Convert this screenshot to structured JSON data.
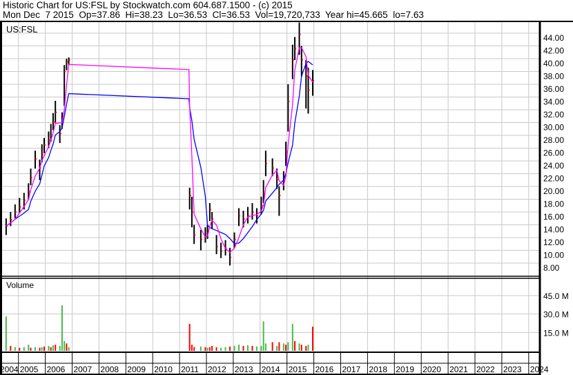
{
  "header": {
    "title": "Historic Chart for US:FSL by Stockwatch.com 604.687.1500 - (c) 2015",
    "quote_line": "Mon Dec  7 2015  Op=37.86  Hi=38.23  Lo=36.53  Cl=36.53  Vol=19,720,733  Year hi=45.665  lo=7.63"
  },
  "colors": {
    "bar": "#000000",
    "close_tick": "#ff0000",
    "ma_short": "#ff00ff",
    "ma_long": "#0000ff",
    "vol_up": "#44bb44",
    "vol_down": "#ff0000",
    "grid": "#c8c8c8"
  },
  "chart_data": [
    {
      "type": "ohlc",
      "symbol_label": "US:FSL",
      "y_ticks": [
        "44.00",
        "42.00",
        "40.00",
        "38.00",
        "36.00",
        "34.00",
        "32.00",
        "30.00",
        "28.00",
        "26.00",
        "24.00",
        "22.00",
        "20.00",
        "18.00",
        "16.00",
        "14.00",
        "12.00",
        "10.00",
        "8.00"
      ],
      "ylim": [
        8,
        44
      ],
      "x_ticks": [
        "2004",
        "2005",
        "2006",
        "2007",
        "2008",
        "2009",
        "2010",
        "2011",
        "2012",
        "2013",
        "2014",
        "2015",
        "2016",
        "2017",
        "2018",
        "2019",
        "2020",
        "2021",
        "2022",
        "2023",
        "2024"
      ],
      "grid": true,
      "series_columns": [
        "date",
        "close",
        "high",
        "low"
      ],
      "points": [
        [
          "2004-07",
          13.8,
          15.0,
          12.4
        ],
        [
          "2004-09",
          14.8,
          16.0,
          13.8
        ],
        [
          "2004-11",
          16.0,
          17.2,
          15.0
        ],
        [
          "2005-01",
          16.8,
          18.2,
          15.8
        ],
        [
          "2005-03",
          17.8,
          19.0,
          16.4
        ],
        [
          "2005-05",
          19.2,
          20.5,
          18.0
        ],
        [
          "2005-06",
          21.4,
          22.8,
          20.2
        ],
        [
          "2005-08",
          24.3,
          25.6,
          22.8
        ],
        [
          "2005-10",
          22.9,
          24.2,
          21.0
        ],
        [
          "2005-11",
          25.0,
          26.6,
          23.8
        ],
        [
          "2005-12",
          26.5,
          27.6,
          25.2
        ],
        [
          "2006-02",
          27.2,
          28.6,
          26.0
        ],
        [
          "2006-03",
          28.0,
          29.8,
          27.0
        ],
        [
          "2006-04",
          30.0,
          31.5,
          28.8
        ],
        [
          "2006-05",
          31.6,
          33.4,
          30.0
        ],
        [
          "2006-07",
          28.3,
          29.6,
          26.8
        ],
        [
          "2006-08",
          30.0,
          31.6,
          29.0
        ],
        [
          "2006-09",
          38.0,
          39.0,
          32.6
        ],
        [
          "2006-10",
          39.5,
          40.0,
          38.2
        ],
        [
          "2006-11",
          39.8,
          40.2,
          39.0
        ],
        [
          "2011-05",
          18.6,
          19.8,
          16.4
        ],
        [
          "2011-06",
          16.0,
          18.4,
          13.6
        ],
        [
          "2011-07",
          12.4,
          14.0,
          11.0
        ],
        [
          "2011-10",
          11.7,
          13.2,
          10.0
        ],
        [
          "2011-12",
          12.2,
          13.6,
          11.2
        ],
        [
          "2012-01",
          12.8,
          14.0,
          11.8
        ],
        [
          "2012-02",
          16.4,
          17.4,
          14.6
        ],
        [
          "2012-03",
          14.9,
          16.0,
          13.4
        ],
        [
          "2012-05",
          10.6,
          12.4,
          9.4
        ],
        [
          "2012-07",
          9.9,
          11.2,
          8.8
        ],
        [
          "2012-09",
          10.3,
          11.6,
          9.2
        ],
        [
          "2012-11",
          8.9,
          10.4,
          7.63
        ],
        [
          "2013-01",
          11.7,
          12.8,
          10.4
        ],
        [
          "2013-03",
          15.4,
          16.6,
          13.8
        ],
        [
          "2013-05",
          14.9,
          16.2,
          13.6
        ],
        [
          "2013-07",
          15.4,
          16.8,
          14.2
        ],
        [
          "2013-09",
          16.0,
          17.4,
          14.8
        ],
        [
          "2013-11",
          15.4,
          16.6,
          14.2
        ],
        [
          "2014-01",
          17.0,
          18.4,
          15.6
        ],
        [
          "2014-02",
          18.9,
          21.0,
          17.4
        ],
        [
          "2014-03",
          23.6,
          25.6,
          21.6
        ],
        [
          "2014-06",
          22.9,
          24.4,
          21.6
        ],
        [
          "2014-08",
          21.1,
          22.8,
          19.6
        ],
        [
          "2014-09",
          18.6,
          20.0,
          15.4
        ],
        [
          "2014-11",
          20.8,
          22.4,
          19.4
        ],
        [
          "2014-12",
          25.4,
          27.0,
          23.2
        ],
        [
          "2015-01",
          33.3,
          36.0,
          28.6
        ],
        [
          "2015-03",
          39.8,
          42.2,
          36.8
        ],
        [
          "2015-04",
          41.6,
          43.4,
          39.8
        ],
        [
          "2015-06",
          43.8,
          45.665,
          40.6
        ],
        [
          "2015-07",
          39.8,
          42.0,
          37.2
        ],
        [
          "2015-09",
          37.3,
          39.8,
          32.2
        ],
        [
          "2015-10",
          35.1,
          38.6,
          31.4
        ],
        [
          "2015-12",
          36.53,
          38.23,
          34.2
        ]
      ]
    },
    {
      "type": "bar",
      "title": "Volume",
      "y_ticks": [
        "45.0 M",
        "30.0 M",
        "15.0 M"
      ],
      "ylim": [
        0,
        50
      ],
      "unit": "M",
      "points": [
        [
          "2004-07",
          28,
          "up"
        ],
        [
          "2004-09",
          4,
          "down"
        ],
        [
          "2004-11",
          3,
          "up"
        ],
        [
          "2005-01",
          2.5,
          "down"
        ],
        [
          "2005-03",
          3,
          "up"
        ],
        [
          "2005-05",
          5,
          "up"
        ],
        [
          "2005-06",
          2.5,
          "down"
        ],
        [
          "2005-08",
          3,
          "up"
        ],
        [
          "2005-10",
          2.5,
          "down"
        ],
        [
          "2005-11",
          3,
          "up"
        ],
        [
          "2005-12",
          3.5,
          "down"
        ],
        [
          "2006-02",
          4,
          "up"
        ],
        [
          "2006-03",
          3,
          "down"
        ],
        [
          "2006-04",
          4.5,
          "up"
        ],
        [
          "2006-05",
          5,
          "down"
        ],
        [
          "2006-07",
          4,
          "up"
        ],
        [
          "2006-08",
          37,
          "up"
        ],
        [
          "2006-09",
          8,
          "up"
        ],
        [
          "2006-10",
          6,
          "down"
        ],
        [
          "2006-11",
          3,
          "up"
        ],
        [
          "2011-05",
          22,
          "down"
        ],
        [
          "2011-06",
          5,
          "down"
        ],
        [
          "2011-07",
          3,
          "down"
        ],
        [
          "2011-10",
          3.5,
          "up"
        ],
        [
          "2011-12",
          3,
          "down"
        ],
        [
          "2012-01",
          2.5,
          "up"
        ],
        [
          "2012-02",
          3,
          "down"
        ],
        [
          "2012-03",
          4,
          "down"
        ],
        [
          "2012-05",
          3,
          "down"
        ],
        [
          "2012-07",
          2.5,
          "up"
        ],
        [
          "2012-09",
          3,
          "up"
        ],
        [
          "2012-11",
          3.5,
          "down"
        ],
        [
          "2013-01",
          4,
          "up"
        ],
        [
          "2013-03",
          5,
          "up"
        ],
        [
          "2013-05",
          4,
          "down"
        ],
        [
          "2013-07",
          4.5,
          "up"
        ],
        [
          "2013-09",
          4,
          "down"
        ],
        [
          "2013-11",
          3.5,
          "up"
        ],
        [
          "2014-01",
          4,
          "up"
        ],
        [
          "2014-02",
          24,
          "up"
        ],
        [
          "2014-03",
          6,
          "up"
        ],
        [
          "2014-06",
          7,
          "down"
        ],
        [
          "2014-08",
          4,
          "up"
        ],
        [
          "2014-09",
          7,
          "down"
        ],
        [
          "2014-11",
          6,
          "up"
        ],
        [
          "2014-12",
          5,
          "down"
        ],
        [
          "2015-01",
          7,
          "up"
        ],
        [
          "2015-03",
          22,
          "up"
        ],
        [
          "2015-04",
          8,
          "down"
        ],
        [
          "2015-06",
          6,
          "up"
        ],
        [
          "2015-07",
          5,
          "down"
        ],
        [
          "2015-09",
          4,
          "down"
        ],
        [
          "2015-10",
          5,
          "up"
        ],
        [
          "2015-12",
          19.7,
          "down"
        ]
      ]
    }
  ]
}
